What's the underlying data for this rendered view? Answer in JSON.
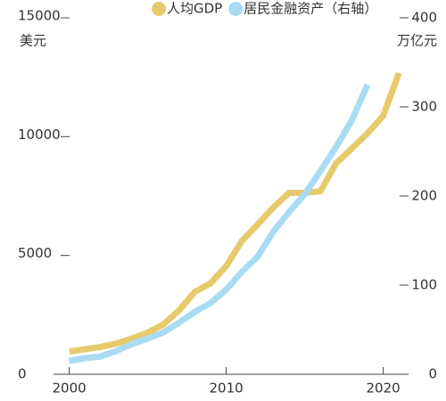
{
  "chart_data": {
    "type": "line",
    "legend": "top",
    "x": [
      2000,
      2001,
      2002,
      2003,
      2004,
      2005,
      2006,
      2007,
      2008,
      2009,
      2010,
      2011,
      2012,
      2013,
      2014,
      2015,
      2016,
      2017,
      2018,
      2019,
      2020,
      2021
    ],
    "series": [
      {
        "name": "人均GDP",
        "color": "#e8ca6e",
        "values": [
          959,
          1053,
          1149,
          1289,
          1509,
          1753,
          2099,
          2694,
          3468,
          3832,
          4550,
          5614,
          6301,
          7020,
          7636,
          7640,
          7700,
          8879,
          9500,
          10140,
          10875,
          12675
        ]
      },
      {
        "name": "居民金融资产（右轴）",
        "color": "#a9dcf2",
        "axis": "y2",
        "values": [
          15,
          18,
          20,
          26,
          34,
          40,
          47,
          58,
          70,
          80,
          95,
          115,
          132,
          160,
          182,
          202,
          228,
          255,
          285,
          325,
          null,
          null
        ]
      }
    ],
    "ylabel": "美元",
    "y2label": "万亿元",
    "xlim": [
      1999,
      2021.5
    ],
    "xticks": [
      2000,
      2010,
      2020
    ],
    "ylim": [
      0,
      15000
    ],
    "yticks": [
      0,
      5000,
      10000,
      15000
    ],
    "y2lim": [
      0,
      400
    ],
    "y2ticks": [
      0,
      100,
      200,
      300,
      400
    ]
  }
}
